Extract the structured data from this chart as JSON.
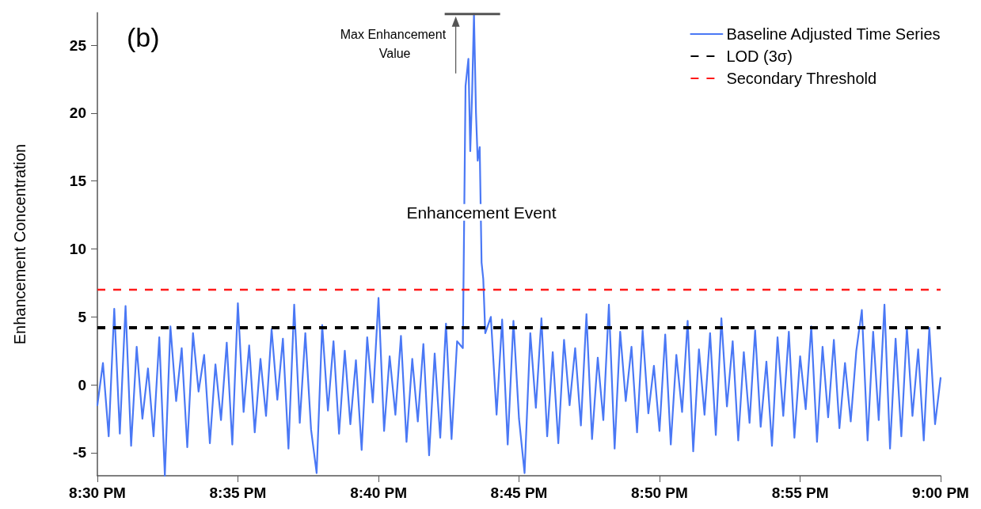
{
  "chart_data": {
    "type": "line",
    "ylabel": "Enhancement Concentration",
    "marker": "none",
    "line_style": "solid",
    "grid": false,
    "legend": "top right",
    "xlim": [
      20.5,
      21.0
    ],
    "xticks": [
      {
        "value": 20.5,
        "label": "8:30 PM"
      },
      {
        "value": 20.5833,
        "label": "8:35 PM"
      },
      {
        "value": 20.6667,
        "label": "8:40 PM"
      },
      {
        "value": 20.75,
        "label": "8:45 PM"
      },
      {
        "value": 20.8333,
        "label": "8:50 PM"
      },
      {
        "value": 20.9167,
        "label": "8:55 PM"
      },
      {
        "value": 21.0,
        "label": "9:00 PM"
      }
    ],
    "ylim": [
      -6.7,
      27.4
    ],
    "yticks": [
      -5,
      0,
      5,
      10,
      15,
      20,
      25
    ],
    "series": [
      {
        "name": "Baseline Adjusted Time Series",
        "color": "#4a78f5",
        "x": [
          20.5,
          20.5033,
          20.5067,
          20.51,
          20.5133,
          20.5167,
          20.52,
          20.5233,
          20.5267,
          20.53,
          20.5333,
          20.5367,
          20.54,
          20.5433,
          20.5467,
          20.55,
          20.5533,
          20.5567,
          20.56,
          20.5633,
          20.5667,
          20.57,
          20.5733,
          20.5767,
          20.58,
          20.5833,
          20.5867,
          20.59,
          20.5933,
          20.5967,
          20.6,
          20.6033,
          20.6067,
          20.61,
          20.6133,
          20.6167,
          20.62,
          20.6233,
          20.6267,
          20.63,
          20.6333,
          20.6367,
          20.64,
          20.6433,
          20.6467,
          20.65,
          20.6533,
          20.6567,
          20.66,
          20.6633,
          20.6667,
          20.67,
          20.6733,
          20.6767,
          20.68,
          20.6833,
          20.6867,
          20.69,
          20.6933,
          20.6967,
          20.7,
          20.7033,
          20.7067,
          20.71,
          20.7133,
          20.7167,
          20.7183,
          20.72,
          20.7211,
          20.7222,
          20.7233,
          20.7245,
          20.7255,
          20.7267,
          20.7278,
          20.7288,
          20.73,
          20.7333,
          20.7367,
          20.74,
          20.7433,
          20.7467,
          20.75,
          20.7533,
          20.7567,
          20.76,
          20.7633,
          20.7667,
          20.77,
          20.7733,
          20.7767,
          20.78,
          20.7833,
          20.7867,
          20.79,
          20.7933,
          20.7967,
          20.8,
          20.8033,
          20.8067,
          20.81,
          20.8133,
          20.8167,
          20.82,
          20.8233,
          20.8267,
          20.83,
          20.8333,
          20.8367,
          20.84,
          20.8433,
          20.8467,
          20.85,
          20.8533,
          20.8567,
          20.86,
          20.8633,
          20.8667,
          20.87,
          20.8733,
          20.8767,
          20.88,
          20.8833,
          20.8867,
          20.89,
          20.8933,
          20.8967,
          20.9,
          20.9033,
          20.9067,
          20.91,
          20.9133,
          20.9167,
          20.92,
          20.9233,
          20.9267,
          20.93,
          20.9333,
          20.9367,
          20.94,
          20.9433,
          20.9467,
          20.95,
          20.9533,
          20.9567,
          20.96,
          20.9633,
          20.9667,
          20.97,
          20.9733,
          20.9767,
          20.98,
          20.9833,
          20.9867,
          20.99,
          20.9933,
          20.9967,
          21.0
        ],
        "values": [
          -1.5,
          1.6,
          -3.8,
          5.6,
          -3.6,
          5.8,
          -4.5,
          2.8,
          -2.5,
          1.2,
          -3.8,
          3.5,
          -6.7,
          4.3,
          -1.2,
          2.7,
          -4.6,
          3.8,
          -0.5,
          2.2,
          -4.3,
          1.5,
          -2.6,
          3.1,
          -4.4,
          6.0,
          -2.0,
          2.9,
          -3.5,
          1.9,
          -2.3,
          4.1,
          -1.1,
          3.4,
          -4.7,
          5.9,
          -2.8,
          3.8,
          -3.3,
          -6.5,
          4.4,
          -1.9,
          3.2,
          -3.6,
          2.5,
          -2.9,
          1.8,
          -4.8,
          3.5,
          -1.3,
          6.4,
          -3.4,
          2.1,
          -2.2,
          3.6,
          -4.2,
          1.9,
          -2.7,
          3.0,
          -5.2,
          2.3,
          -3.9,
          4.5,
          -4.0,
          3.2,
          2.7,
          22.0,
          24.0,
          17.2,
          21.5,
          27.3,
          20.0,
          16.5,
          17.5,
          9.0,
          7.8,
          3.8,
          5.0,
          -2.2,
          4.8,
          -4.4,
          4.7,
          -2.5,
          -6.5,
          3.8,
          -1.7,
          4.9,
          -3.8,
          2.4,
          -4.3,
          3.3,
          -1.5,
          2.7,
          -3.0,
          5.2,
          -4.0,
          2.0,
          -2.6,
          5.9,
          -4.7,
          3.9,
          -1.2,
          2.8,
          -3.5,
          4.0,
          -2.1,
          1.4,
          -3.4,
          3.7,
          -4.4,
          2.2,
          -2.0,
          4.7,
          -4.9,
          2.6,
          -2.2,
          3.8,
          -3.7,
          4.9,
          -1.6,
          3.2,
          -4.1,
          2.4,
          -2.8,
          4.0,
          -3.1,
          1.7,
          -4.5,
          3.5,
          -2.3,
          3.9,
          -3.9,
          2.1,
          -1.8,
          4.3,
          -4.2,
          2.8,
          -2.4,
          3.3,
          -3.2,
          1.6,
          -2.7,
          2.5,
          5.5,
          -4.1,
          3.9,
          -2.6,
          5.9,
          -4.7,
          3.4,
          -3.8,
          4.2,
          -2.3,
          2.6,
          -4.1,
          4.2,
          -2.9,
          0.5
        ]
      }
    ],
    "ref_lines": [
      {
        "axis": "y",
        "value": 4.2,
        "label": "LOD (3σ)",
        "color": "#000000",
        "line_style": "dashed"
      },
      {
        "axis": "y",
        "value": 7.0,
        "label": "Secondary Threshold",
        "color": "#ff1a1a",
        "line_style": "dashed"
      }
    ],
    "annotations": [
      "(b)",
      {
        "text": "Enhancement Event",
        "x": 20.7277,
        "y": 12.7
      },
      {
        "text": "Max Enhancement Value",
        "x": 20.7233,
        "y": 27.3
      }
    ]
  }
}
